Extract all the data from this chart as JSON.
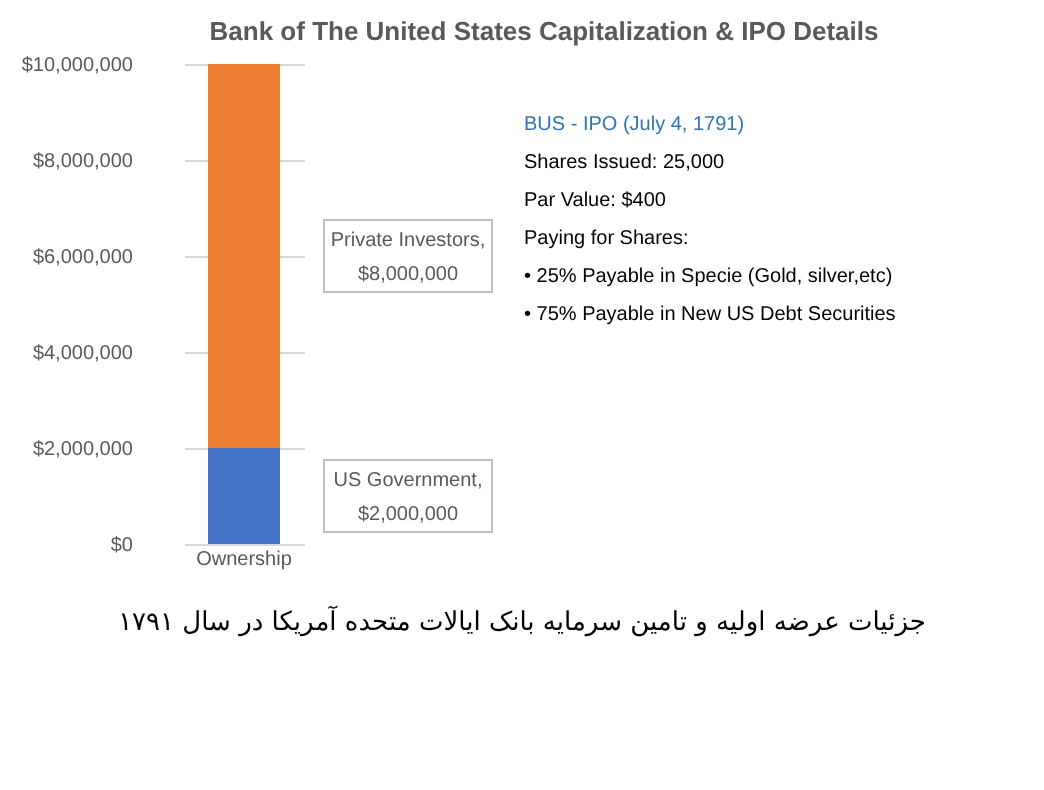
{
  "chart_data": {
    "type": "bar",
    "stacked": true,
    "title": "Bank of The United States Capitalization & IPO Details",
    "categories": [
      "Ownership"
    ],
    "series": [
      {
        "color": "#4472c4",
        "values": [
          2000000
        ]
      },
      {
        "color": "#ed7d31",
        "values": [
          8000000
        ]
      }
    ],
    "ylim": [
      0,
      10000000
    ],
    "yticks": [
      {
        "value": 0,
        "label": "$0"
      },
      {
        "value": 2000000,
        "label": "$2,000,000"
      },
      {
        "value": 4000000,
        "label": "$4,000,000"
      },
      {
        "value": 6000000,
        "label": "$6,000,000"
      },
      {
        "value": 8000000,
        "label": "$8,000,000"
      },
      {
        "value": 10000000,
        "label": "$10,000,000"
      }
    ],
    "grid": "y",
    "legend": false,
    "annotations": [
      "Private Investors,\n$8,000,000",
      "US Government,\n$2,000,000",
      "BUS - IPO (July 4, 1791)",
      "Shares Issued: 25,000",
      "Par Value: $400",
      "Paying for Shares:",
      "• 25% Payable in Specie (Gold, silver,etc)",
      "• 75% Payable in New US Debt Securities",
      "جزئیات عرضه اولیه و تامین سرمایه بانک ایالات متحده آمریکا در سال ۱۷۹۱"
    ]
  }
}
